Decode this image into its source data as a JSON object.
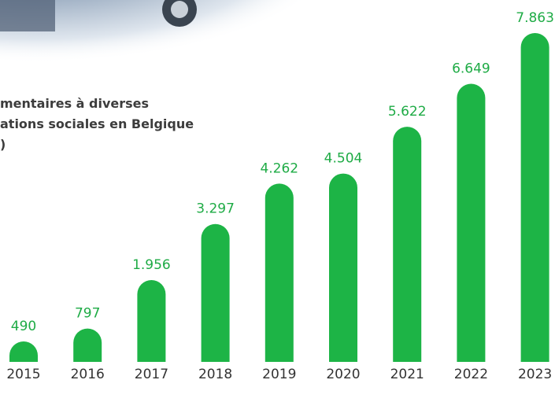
{
  "chart_data": {
    "type": "bar",
    "title_lines": [
      "mentaires à diverses",
      "ations sociales en Belgique",
      ")"
    ],
    "categories": [
      "2015",
      "2016",
      "2017",
      "2018",
      "2019",
      "2020",
      "2021",
      "2022",
      "2023"
    ],
    "values": [
      490,
      797,
      1956,
      3297,
      4262,
      4504,
      5622,
      6649,
      7863
    ],
    "value_labels": [
      "490",
      "797",
      "1.956",
      "3.297",
      "4.262",
      "4.504",
      "5.622",
      "6.649",
      "7.863"
    ],
    "color": "#1db446"
  }
}
